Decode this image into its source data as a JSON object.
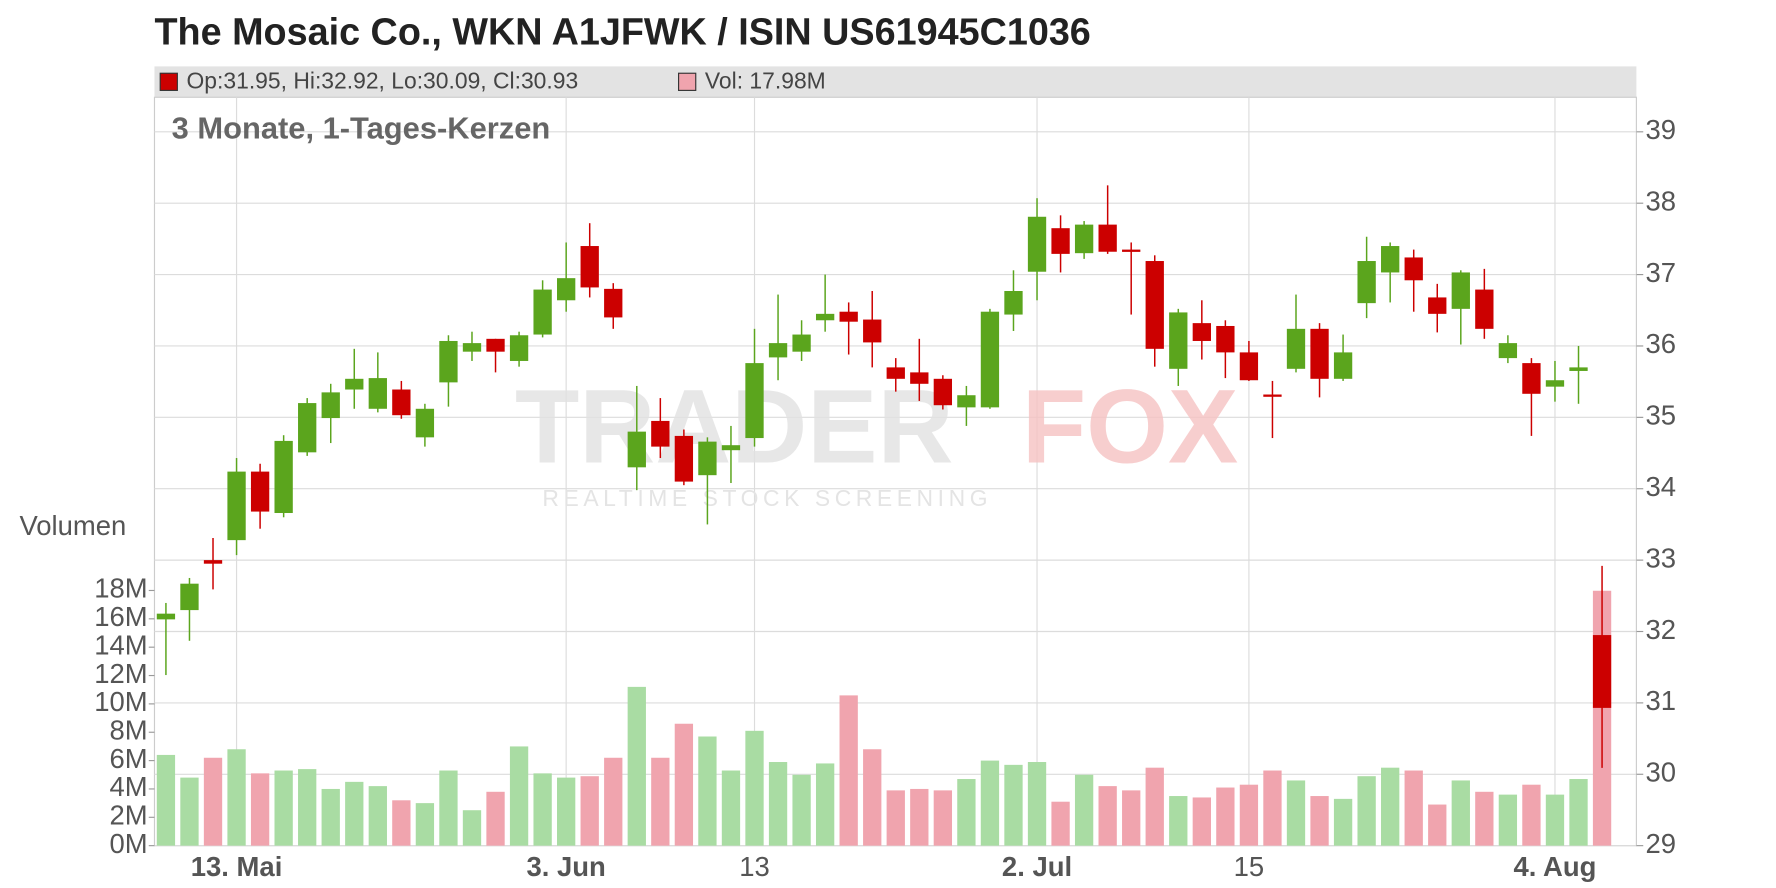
{
  "chart_data": {
    "type": "candlestick",
    "title": "The Mosaic Co., WKN A1JFWK / ISIN US61945C1036",
    "subtitle": "3 Monate, 1-Tages-Kerzen",
    "legend_price": "Op:31.95, Hi:32.92, Lo:30.09, Cl:30.93",
    "legend_volume": "Vol: 17.98M",
    "volume_label": "Volumen",
    "watermark_left": "TRADER",
    "watermark_right": "FOX",
    "watermark_tagline": "REALTIME STOCK SCREENING",
    "categories": [
      null,
      null,
      null,
      "13. Mai",
      null,
      null,
      null,
      null,
      null,
      null,
      null,
      null,
      null,
      null,
      null,
      null,
      null,
      "3. Jun",
      null,
      null,
      null,
      null,
      null,
      null,
      null,
      "13",
      null,
      null,
      null,
      null,
      null,
      null,
      null,
      null,
      null,
      null,
      null,
      "2. Jul",
      null,
      null,
      null,
      null,
      null,
      null,
      null,
      null,
      "15",
      null,
      null,
      null,
      null,
      null,
      null,
      null,
      null,
      null,
      null,
      null,
      null,
      "4. Aug",
      null,
      null
    ],
    "open": [
      32.17,
      32.3,
      33.0,
      33.28,
      34.24,
      33.66,
      34.51,
      34.99,
      35.39,
      35.12,
      35.39,
      34.72,
      35.49,
      35.92,
      36.1,
      35.79,
      36.16,
      36.64,
      37.4,
      36.8,
      34.3,
      34.95,
      34.74,
      34.19,
      34.54,
      34.71,
      35.84,
      35.92,
      36.36,
      36.48,
      36.37,
      35.7,
      35.63,
      35.54,
      35.14,
      35.14,
      36.44,
      37.04,
      37.65,
      37.3,
      37.7,
      37.35,
      37.19,
      35.68,
      36.32,
      36.28,
      35.91,
      35.32,
      35.68,
      36.24,
      35.54,
      36.6,
      37.03,
      37.24,
      36.68,
      36.52,
      36.79,
      35.83,
      35.76,
      35.43,
      35.65,
      31.95
    ],
    "high": [
      32.4,
      32.75,
      33.31,
      34.43,
      34.35,
      34.75,
      35.27,
      35.47,
      35.96,
      35.91,
      35.51,
      35.19,
      36.15,
      36.2,
      36.1,
      36.2,
      36.92,
      37.45,
      37.72,
      36.88,
      35.44,
      35.27,
      34.83,
      34.72,
      34.88,
      36.24,
      36.72,
      36.36,
      37.0,
      36.61,
      36.77,
      35.83,
      36.1,
      35.59,
      35.44,
      36.52,
      37.06,
      38.07,
      37.83,
      37.75,
      38.25,
      37.45,
      37.27,
      36.52,
      36.64,
      36.36,
      36.07,
      35.51,
      36.72,
      36.32,
      36.16,
      37.53,
      37.45,
      37.35,
      36.87,
      37.06,
      37.08,
      36.15,
      35.83,
      35.79,
      36.0,
      32.92
    ],
    "low": [
      31.39,
      31.87,
      32.59,
      33.07,
      33.44,
      33.6,
      34.46,
      34.64,
      35.12,
      35.07,
      34.98,
      34.59,
      35.15,
      35.79,
      35.63,
      35.71,
      36.12,
      36.48,
      36.68,
      36.24,
      33.98,
      34.43,
      34.05,
      33.5,
      34.08,
      34.59,
      35.52,
      35.79,
      36.2,
      35.88,
      35.7,
      35.36,
      35.23,
      35.11,
      34.88,
      35.12,
      36.21,
      36.64,
      37.03,
      37.22,
      37.29,
      36.44,
      35.71,
      35.44,
      35.81,
      35.55,
      35.51,
      34.71,
      35.63,
      35.28,
      35.51,
      36.39,
      36.61,
      36.48,
      36.19,
      36.02,
      36.1,
      35.76,
      34.74,
      35.22,
      35.19,
      30.09
    ],
    "close": [
      32.25,
      32.67,
      32.95,
      34.24,
      33.68,
      34.67,
      35.2,
      35.35,
      35.54,
      35.55,
      35.03,
      35.12,
      36.07,
      36.04,
      35.92,
      36.15,
      36.79,
      36.95,
      36.82,
      36.4,
      34.8,
      34.59,
      34.1,
      34.66,
      34.61,
      35.76,
      36.04,
      36.16,
      36.45,
      36.34,
      36.05,
      35.54,
      35.47,
      35.17,
      35.31,
      36.48,
      36.77,
      37.81,
      37.29,
      37.7,
      37.32,
      37.32,
      35.96,
      36.47,
      36.07,
      35.91,
      35.52,
      35.29,
      36.24,
      35.54,
      35.91,
      37.19,
      37.4,
      36.92,
      36.45,
      37.03,
      36.24,
      36.04,
      35.33,
      35.52,
      35.7,
      30.93
    ],
    "volume": [
      6.4,
      4.8,
      6.2,
      6.8,
      5.1,
      5.3,
      5.4,
      4.0,
      4.5,
      4.2,
      3.2,
      3.0,
      5.3,
      2.5,
      3.8,
      7.0,
      5.1,
      4.8,
      4.9,
      6.2,
      11.2,
      6.2,
      8.6,
      7.7,
      5.3,
      8.1,
      5.9,
      5.0,
      5.8,
      10.6,
      6.8,
      3.9,
      4.0,
      3.9,
      4.7,
      6.0,
      5.7,
      5.9,
      3.1,
      5.0,
      4.2,
      3.9,
      5.5,
      3.5,
      3.4,
      4.1,
      4.3,
      5.3,
      4.6,
      3.5,
      3.3,
      4.9,
      5.5,
      5.3,
      2.9,
      4.6,
      3.8,
      3.6,
      4.3,
      3.6,
      4.7,
      17.98
    ],
    "volume_axis": "y2",
    "ylim": [
      29,
      39.5
    ],
    "yticks": [
      29,
      30,
      31,
      32,
      33,
      34,
      35,
      36,
      37,
      38,
      39
    ],
    "y2lim": [
      0,
      18
    ],
    "y2ticks": [
      {
        "value": 0,
        "label": "0M"
      },
      {
        "value": 2,
        "label": "2M"
      },
      {
        "value": 4,
        "label": "4M"
      },
      {
        "value": 6,
        "label": "6M"
      },
      {
        "value": 8,
        "label": "8M"
      },
      {
        "value": 10,
        "label": "10M"
      },
      {
        "value": 12,
        "label": "12M"
      },
      {
        "value": 14,
        "label": "14M"
      },
      {
        "value": 16,
        "label": "16M"
      },
      {
        "value": 18,
        "label": "18M"
      }
    ],
    "up_color": "#5ba51d",
    "down_color": "#cc0000",
    "volume_up_color": "#a9dca3",
    "volume_down_color": "#f0a4ae",
    "grid": true
  }
}
